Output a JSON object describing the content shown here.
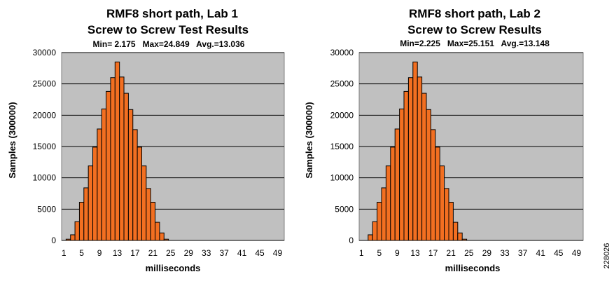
{
  "colors": {
    "plot_area": "#c0c0c0",
    "bar_fill": "#f26f21",
    "bar_stroke": "#000000",
    "gridline": "#000000"
  },
  "figure_id": "228026",
  "chart_data": [
    {
      "type": "bar",
      "title_line1": "RMF8 short path, Lab 1",
      "title_line2": "Screw to Screw Test Results",
      "stats": "Min= 2.175   Max=24.849   Avg.=13.036",
      "xlabel": "milliseconds",
      "ylabel": "Samples (300000)",
      "ylim": [
        0,
        30000
      ],
      "yticks": [
        0,
        5000,
        10000,
        15000,
        20000,
        25000,
        30000
      ],
      "xticks": [
        1,
        5,
        9,
        13,
        17,
        21,
        25,
        29,
        33,
        37,
        41,
        45,
        49
      ],
      "xlim": [
        1,
        49
      ],
      "grid": true,
      "x": [
        1,
        2,
        3,
        4,
        5,
        6,
        7,
        8,
        9,
        10,
        11,
        12,
        13,
        14,
        15,
        16,
        17,
        18,
        19,
        20,
        21,
        22,
        23,
        24,
        25,
        26,
        27,
        28,
        29,
        30,
        31,
        32,
        33,
        34,
        35,
        36,
        37,
        38,
        39,
        40,
        41,
        42,
        43,
        44,
        45,
        46,
        47,
        48,
        49
      ],
      "values": [
        0,
        200,
        900,
        3000,
        6100,
        8400,
        11900,
        14900,
        17800,
        21000,
        23800,
        26000,
        28500,
        26100,
        23500,
        20900,
        17700,
        14900,
        11900,
        8300,
        6100,
        2900,
        1200,
        200,
        0,
        0,
        0,
        0,
        0,
        0,
        0,
        0,
        0,
        0,
        0,
        0,
        0,
        0,
        0,
        0,
        0,
        0,
        0,
        0,
        0,
        0,
        0,
        0,
        0
      ]
    },
    {
      "type": "bar",
      "title_line1": "RMF8 short path, Lab 2",
      "title_line2": "Screw to Screw Results",
      "stats": "Min=2.225   Max=25.151   Avg.=13.148",
      "xlabel": "milliseconds",
      "ylabel": "Samples (300000)",
      "ylim": [
        0,
        30000
      ],
      "yticks": [
        0,
        5000,
        10000,
        15000,
        20000,
        25000,
        30000
      ],
      "xticks": [
        1,
        5,
        9,
        13,
        17,
        21,
        25,
        29,
        33,
        37,
        41,
        45,
        49
      ],
      "xlim": [
        1,
        49
      ],
      "grid": true,
      "x": [
        1,
        2,
        3,
        4,
        5,
        6,
        7,
        8,
        9,
        10,
        11,
        12,
        13,
        14,
        15,
        16,
        17,
        18,
        19,
        20,
        21,
        22,
        23,
        24,
        25,
        26,
        27,
        28,
        29,
        30,
        31,
        32,
        33,
        34,
        35,
        36,
        37,
        38,
        39,
        40,
        41,
        42,
        43,
        44,
        45,
        46,
        47,
        48,
        49
      ],
      "values": [
        0,
        0,
        900,
        3000,
        6100,
        8400,
        11900,
        14900,
        17800,
        21000,
        23800,
        26000,
        28500,
        26100,
        23500,
        20900,
        17700,
        14900,
        11900,
        8300,
        6100,
        2900,
        1200,
        200,
        0,
        0,
        0,
        0,
        0,
        0,
        0,
        0,
        0,
        0,
        0,
        0,
        0,
        0,
        0,
        0,
        0,
        0,
        0,
        0,
        0,
        0,
        0,
        0,
        0
      ]
    }
  ]
}
